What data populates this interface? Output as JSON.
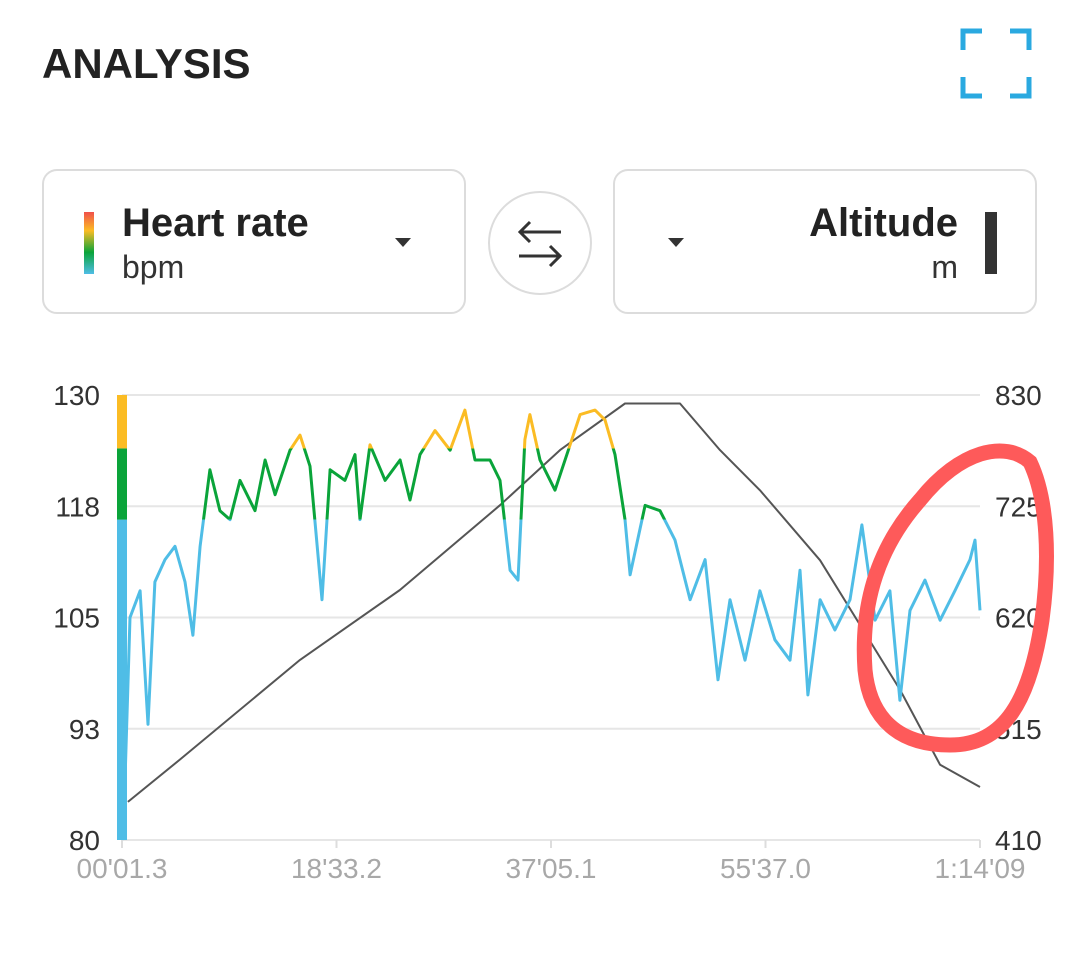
{
  "header": {
    "title": "ANALYSIS"
  },
  "chart_data": {
    "type": "line",
    "xlim": [
      1.3,
      4449
    ],
    "xticks": [
      {
        "value": 1.3,
        "label": "00'01.3"
      },
      {
        "value": 1113.2,
        "label": "18'33.2"
      },
      {
        "value": 2225.1,
        "label": "37'05.1"
      },
      {
        "value": 3337.0,
        "label": "55'37.0"
      },
      {
        "value": 4449,
        "label": "1:14'09"
      }
    ],
    "ylim": [
      80,
      130
    ],
    "yticks": [
      80,
      {
        "value": 92.5,
        "label": "93"
      },
      105,
      {
        "value": 117.5,
        "label": "118"
      },
      130
    ],
    "y2lim": [
      410,
      830
    ],
    "y2ticks": [
      410,
      515,
      620,
      725,
      830
    ],
    "grid": true,
    "series": [
      {
        "name": "Heart rate",
        "unit": "bpm",
        "zones": [
          {
            "from": 80,
            "to": 116,
            "color": "#4fbde6"
          },
          {
            "from": 116,
            "to": 124,
            "color": "#0aa43a"
          },
          {
            "from": 124,
            "to": 130,
            "color": "#fbbc24"
          }
        ],
        "x": [
          1.3,
          17,
          43,
          95,
          136,
          172,
          224,
          276,
          328,
          369,
          406,
          457,
          509,
          561,
          613,
          691,
          743,
          795,
          872,
          924,
          976,
          1038,
          1080,
          1157,
          1209,
          1235,
          1287,
          1365,
          1443,
          1494,
          1546,
          1624,
          1702,
          1779,
          1831,
          1909,
          1961,
          2013,
          2054,
          2090,
          2116,
          2168,
          2246,
          2324,
          2376,
          2453,
          2505,
          2557,
          2609,
          2635,
          2713,
          2790,
          2868,
          2946,
          3024,
          3091,
          3153,
          3231,
          3308,
          3386,
          3464,
          3516,
          3557,
          3620,
          3697,
          3775,
          3837,
          3905,
          3982,
          4034,
          4086,
          4164,
          4242,
          4319,
          4397,
          4423,
          4449
        ],
        "values": [
          80,
          86.7,
          105,
          108,
          93,
          109,
          111.5,
          113,
          109,
          103,
          113,
          121.6,
          117,
          116,
          120.4,
          117,
          122.7,
          118.8,
          123.8,
          125.5,
          122,
          107,
          121.6,
          120.4,
          123.3,
          116,
          124.4,
          120.4,
          122.7,
          118.2,
          123.3,
          126,
          123.8,
          128.3,
          122.7,
          122.7,
          120.4,
          110.3,
          109.2,
          125,
          127.8,
          122.7,
          119.3,
          124.4,
          127.8,
          128.3,
          127.2,
          123.3,
          116,
          109.8,
          117.6,
          117,
          113.7,
          107,
          111.5,
          98,
          107,
          100.2,
          108,
          102.5,
          100.2,
          110.3,
          96.3,
          107,
          103.6,
          107,
          115.4,
          104.7,
          108,
          95.7,
          105.8,
          109.2,
          104.7,
          108,
          111.5,
          113.7,
          105.8
        ]
      },
      {
        "name": "Altitude",
        "unit": "m",
        "color": "#555555",
        "axis": "y2",
        "x": [
          32,
          302,
          924,
          1442,
          1961,
          2272,
          2609,
          2894,
          3101,
          3309,
          3620,
          3827,
          4034,
          4242,
          4449
        ],
        "values": [
          446,
          486,
          580,
          646,
          726,
          778,
          822,
          822,
          778,
          740,
          674,
          613,
          552,
          481,
          460
        ]
      }
    ]
  }
}
